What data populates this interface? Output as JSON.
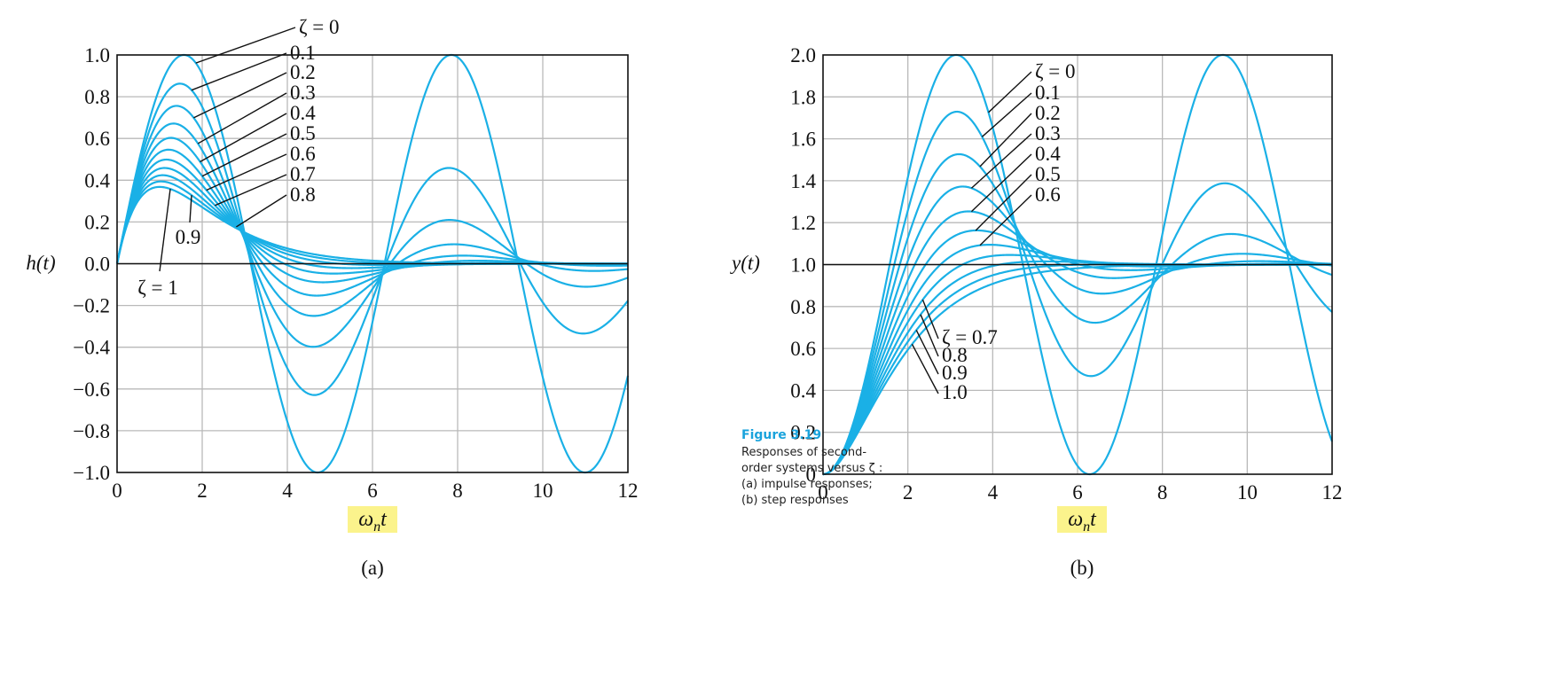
{
  "caption": {
    "figure_label": "Figure 3.19",
    "text": "Responses of second-order systems versus ζ : (a) impulse responses; (b) step responses"
  },
  "chart_data": [
    {
      "type": "line",
      "panel_label": "(a)",
      "title": "",
      "xlabel": "ωnt",
      "ylabel": "h(t)",
      "xlim": [
        0,
        12
      ],
      "ylim": [
        -1.0,
        1.0
      ],
      "xticks": [
        0,
        2,
        4,
        6,
        8,
        10,
        12
      ],
      "xtick_labels": [
        "0",
        "2",
        "4",
        "6",
        "8",
        "10",
        "12"
      ],
      "yticks": [
        1.0,
        0.8,
        0.6,
        0.4,
        0.2,
        0.0,
        -0.2,
        -0.4,
        -0.6,
        -0.8,
        -1.0
      ],
      "ytick_labels": [
        "1.0",
        "0.8",
        "0.6",
        "0.4",
        "0.2",
        "0.0",
        "−0.2",
        "−0.4",
        "−0.6",
        "−0.8",
        "−1.0"
      ],
      "grid": true,
      "response": "impulse",
      "series": [
        {
          "name": "ζ = 0",
          "zeta": 0.0
        },
        {
          "name": "0.1",
          "zeta": 0.1
        },
        {
          "name": "0.2",
          "zeta": 0.2
        },
        {
          "name": "0.3",
          "zeta": 0.3
        },
        {
          "name": "0.4",
          "zeta": 0.4
        },
        {
          "name": "0.5",
          "zeta": 0.5
        },
        {
          "name": "0.6",
          "zeta": 0.6
        },
        {
          "name": "0.7",
          "zeta": 0.7
        },
        {
          "name": "0.8",
          "zeta": 0.8
        },
        {
          "name": "0.9",
          "zeta": 0.9
        },
        {
          "name": "ζ = 1",
          "zeta": 1.0
        }
      ],
      "annotations": [
        "ζ = 0",
        "0.1",
        "0.2",
        "0.3",
        "0.4",
        "0.5",
        "0.6",
        "0.7",
        "0.8",
        "0.9",
        "ζ = 1"
      ]
    },
    {
      "type": "line",
      "panel_label": "(b)",
      "title": "",
      "xlabel": "ωnt",
      "ylabel": "y(t)",
      "xlim": [
        0,
        12
      ],
      "ylim": [
        0,
        2.0
      ],
      "xticks": [
        0,
        2,
        4,
        6,
        8,
        10,
        12
      ],
      "xtick_labels": [
        "0",
        "2",
        "4",
        "6",
        "8",
        "10",
        "12"
      ],
      "yticks": [
        2.0,
        1.8,
        1.6,
        1.4,
        1.2,
        1.0,
        0.8,
        0.6,
        0.4,
        0.2,
        0
      ],
      "ytick_labels": [
        "2.0",
        "1.8",
        "1.6",
        "1.4",
        "1.2",
        "1.0",
        "0.8",
        "0.6",
        "0.4",
        "0.2",
        "0"
      ],
      "grid": true,
      "response": "step",
      "series": [
        {
          "name": "ζ = 0",
          "zeta": 0.0
        },
        {
          "name": "0.1",
          "zeta": 0.1
        },
        {
          "name": "0.2",
          "zeta": 0.2
        },
        {
          "name": "0.3",
          "zeta": 0.3
        },
        {
          "name": "0.4",
          "zeta": 0.4
        },
        {
          "name": "0.5",
          "zeta": 0.5
        },
        {
          "name": "0.6",
          "zeta": 0.6
        },
        {
          "name": "ζ = 0.7",
          "zeta": 0.7
        },
        {
          "name": "0.8",
          "zeta": 0.8
        },
        {
          "name": "0.9",
          "zeta": 0.9
        },
        {
          "name": "1.0",
          "zeta": 1.0
        }
      ],
      "annotations": [
        "ζ = 0",
        "0.1",
        "0.2",
        "0.3",
        "0.4",
        "0.5",
        "0.6",
        "ζ = 0.7",
        "0.8",
        "0.9",
        "1.0"
      ]
    }
  ],
  "colors": {
    "curve": "#1ab0e6",
    "grid": "#b9b9b9",
    "xlabel_highlight": "#fbf38c",
    "caption_accent": "#1aa3dc"
  }
}
